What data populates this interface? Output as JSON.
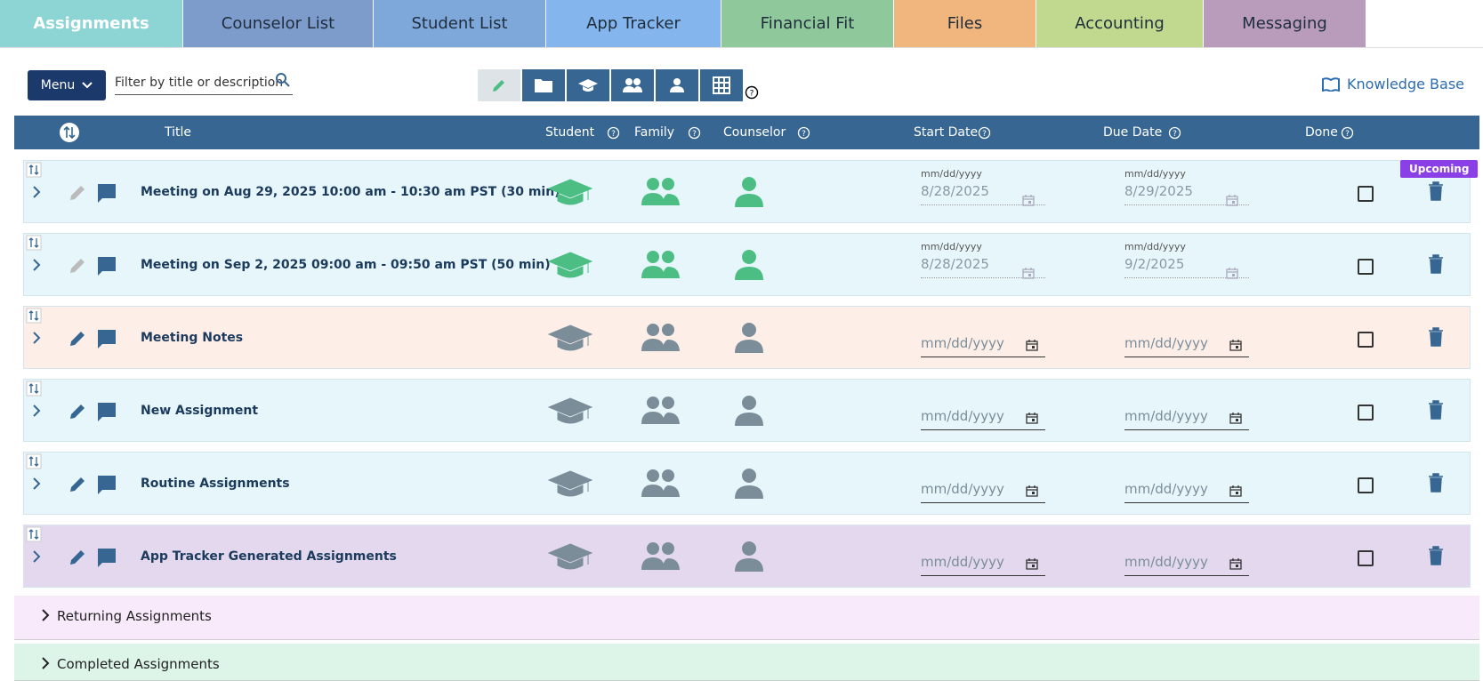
{
  "tabs": [
    {
      "label": "Assignments",
      "color": "#8dd4d4"
    },
    {
      "label": "Counselor List",
      "color": "#7d9ccb"
    },
    {
      "label": "Student List",
      "color": "#7fa8da"
    },
    {
      "label": "App Tracker",
      "color": "#84b5ec"
    },
    {
      "label": "Financial Fit",
      "color": "#8fc89b"
    },
    {
      "label": "Files",
      "color": "#f0b67d"
    },
    {
      "label": "Accounting",
      "color": "#c0d98f"
    },
    {
      "label": "Messaging",
      "color": "#b99cbc"
    }
  ],
  "toolbar": {
    "menu": "Menu",
    "filter_placeholder": "Filter by title or description",
    "knowledge_base": "Knowledge Base"
  },
  "table": {
    "headers": [
      "Title",
      "Student",
      "Family",
      "Counselor",
      "Start Date",
      "Due Date",
      "Done"
    ],
    "date_format": "mm/dd/yyyy",
    "rows": [
      {
        "title": "Meeting on Aug 29, 2025 10:00 am - 10:30 am PST (30 min)",
        "start_date": "8/28/2025",
        "due_date": "8/29/2025",
        "badge": "Upcoming",
        "color": "#e6f6fb",
        "icon_color": "#4cbe84"
      },
      {
        "title": "Meeting on Sep 2, 2025 09:00 am - 09:50 am PST (50 min)",
        "start_date": "8/28/2025",
        "due_date": "9/2/2025",
        "color": "#e6f6fb",
        "icon_color": "#4cbe84"
      },
      {
        "title": "Meeting Notes",
        "color": "#fdeee8",
        "icon_color": "#7b8d99"
      },
      {
        "title": "New Assignment",
        "color": "#e6f6fb",
        "icon_color": "#7b8d99"
      },
      {
        "title": "Routine Assignments",
        "color": "#e6f6fb",
        "icon_color": "#7b8d99"
      },
      {
        "title": "App Tracker Generated Assignments",
        "color": "#e3d8ee",
        "icon_color": "#7b8d99"
      }
    ]
  },
  "sections": [
    {
      "label": "Returning Assignments",
      "color": "#f8eafa"
    },
    {
      "label": "Completed Assignments",
      "color": "#dcf5e8"
    }
  ]
}
